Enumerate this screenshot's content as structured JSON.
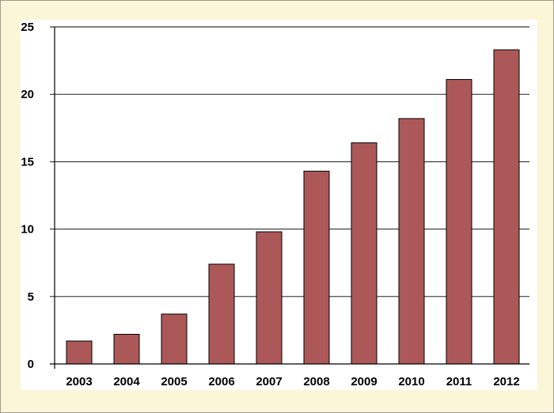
{
  "chart_data": {
    "type": "bar",
    "title": "",
    "xlabel": "",
    "ylabel": "",
    "categories": [
      "2003",
      "2004",
      "2005",
      "2006",
      "2007",
      "2008",
      "2009",
      "2010",
      "2011",
      "2012"
    ],
    "values": [
      1.7,
      2.2,
      3.7,
      7.4,
      9.8,
      14.3,
      16.4,
      18.2,
      21.1,
      23.3
    ],
    "ylim": [
      0,
      25
    ],
    "yticks": [
      "0",
      "5",
      "10",
      "15",
      "20",
      "25"
    ],
    "grid": true,
    "legend": "none",
    "bar_color": "#ad5858",
    "background_color": "#fcf6d9"
  }
}
